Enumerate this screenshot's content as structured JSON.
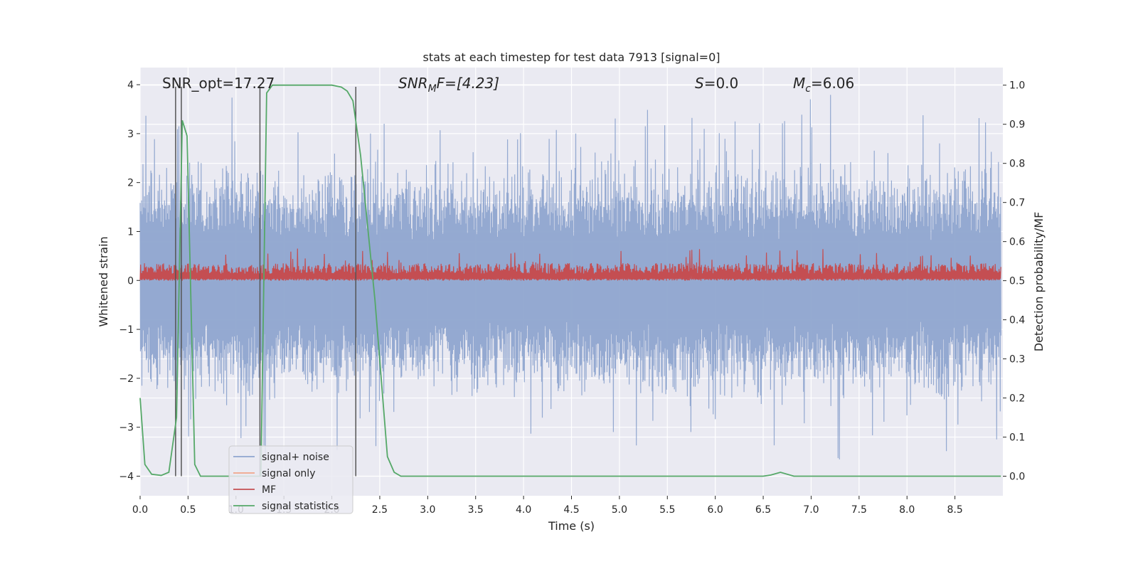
{
  "chart_data": {
    "type": "line",
    "title": "stats at each timestep for test data 7913 [signal=0]",
    "xlabel": "Time (s)",
    "ylabel_left": "Whitened strain",
    "ylabel_right": "Detection probability/MF",
    "xlim": [
      0.0,
      9.0
    ],
    "ylim_left": [
      -4.4,
      4.35
    ],
    "ylim_right": [
      -0.05,
      1.045
    ],
    "x_ticks": [
      "0.0",
      "0.5",
      "1.0",
      "1.5",
      "2.0",
      "2.5",
      "3.0",
      "3.5",
      "4.0",
      "4.5",
      "5.0",
      "5.5",
      "6.0",
      "6.5",
      "7.0",
      "7.5",
      "8.0",
      "8.5"
    ],
    "y_left_ticks": [
      "4",
      "3",
      "2",
      "1",
      "0",
      "−1",
      "−2",
      "−3",
      "−4"
    ],
    "y_right_ticks": [
      "1.0",
      "0.9",
      "0.8",
      "0.7",
      "0.6",
      "0.5",
      "0.4",
      "0.3",
      "0.2",
      "0.1",
      "0.0"
    ],
    "annotations": {
      "snr_opt": "SNR_opt=17.27",
      "snr_mf_main": "SNR",
      "snr_mf_sub": "M",
      "snr_mf_rest": "F=[4.23]",
      "s_main": "S",
      "s_rest": "=0.0",
      "mc_main": "M",
      "mc_sub": "c",
      "mc_rest": "=6.06"
    },
    "vertical_lines_x": [
      0.37,
      0.43,
      1.25,
      2.25
    ],
    "series": [
      {
        "name": "signal+ noise",
        "color": "#8fa5cf",
        "axis": "left",
        "description": "whitened strain noise, envelope approx ±2.5 with spikes to ±4",
        "envelope_upper": 2.5,
        "envelope_lower": -2.5,
        "spike_max": 3.95,
        "spike_min": -4.0
      },
      {
        "name": "signal only",
        "color": "#f0a68a",
        "axis": "left",
        "values": []
      },
      {
        "name": "MF",
        "color": "#c44e52",
        "axis": "right",
        "description": "matched filter output fluctuating between ~0.5 and ~0.58",
        "baseline": 0.5,
        "mean_top": 0.545,
        "spike_max": 0.585
      },
      {
        "name": "signal statistics",
        "color": "#55a868",
        "axis": "right",
        "x": [
          0.0,
          0.05,
          0.12,
          0.22,
          0.3,
          0.38,
          0.44,
          0.49,
          0.57,
          0.63,
          0.7,
          1.0,
          1.2,
          1.26,
          1.32,
          1.38,
          2.0,
          2.1,
          2.16,
          2.22,
          2.3,
          2.45,
          2.58,
          2.65,
          2.72,
          6.5,
          6.58,
          6.68,
          6.82,
          8.98
        ],
        "y": [
          0.2,
          0.03,
          0.005,
          0.002,
          0.01,
          0.15,
          0.91,
          0.87,
          0.03,
          0.0,
          0.0,
          0.0,
          0.0,
          0.0,
          0.98,
          1.0,
          1.0,
          0.995,
          0.985,
          0.96,
          0.82,
          0.45,
          0.05,
          0.01,
          0.0,
          0.0,
          0.003,
          0.01,
          0.0,
          0.0
        ]
      }
    ],
    "legend": {
      "location": "lower-left",
      "entries": [
        "signal+ noise",
        "signal only",
        "MF",
        "signal statistics"
      ]
    },
    "grid": true,
    "colors": {
      "background": "#eaeaf2",
      "grid": "#ffffff",
      "vline": "#555555"
    }
  }
}
